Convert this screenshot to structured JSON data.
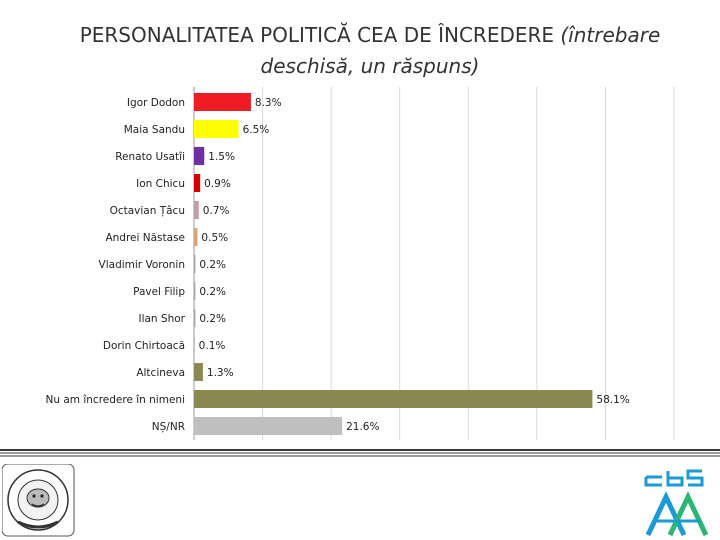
{
  "title": {
    "main": "PERSONALITATEA POLITICĂ CEA DE ÎNCREDERE",
    "italic": "(întrebare deschisă, un răspuns)"
  },
  "chart_data": {
    "type": "bar",
    "orientation": "horizontal",
    "categories": [
      "Igor Dodon",
      "Maia Sandu",
      "Renato Usatîi",
      "Ion Chicu",
      "Octavian Țâcu",
      "Andrei Năstase",
      "Vladimir Voronin",
      "Pavel Filip",
      "Ilan Shor",
      "Dorin Chirtoacă",
      "Altcineva",
      "Nu am încredere în nimeni",
      "NȘ/NR"
    ],
    "values": [
      8.3,
      6.5,
      1.5,
      0.9,
      0.7,
      0.5,
      0.2,
      0.2,
      0.2,
      0.1,
      1.3,
      58.1,
      21.6
    ],
    "value_labels": [
      "8.3%",
      "6.5%",
      "1.5%",
      "0.9%",
      "0.7%",
      "0.5%",
      "0.2%",
      "0.2%",
      "0.2%",
      "0.1%",
      "1.3%",
      "58.1%",
      "21.6%"
    ],
    "colors": [
      "#ee1c25",
      "#ffff00",
      "#7030a0",
      "#d50000",
      "#c0a0a8",
      "#d9a27a",
      "#a6a6a6",
      "#a6a6a6",
      "#a6a6a6",
      "#a6a6a6",
      "#8b8751",
      "#8b8751",
      "#bfbfbf"
    ],
    "xlim": [
      0,
      70
    ],
    "grid": true,
    "legend": "none"
  },
  "logos": {
    "left": {
      "text": "THE WATCH DOG",
      "icon": "watchdog-seal-icon"
    },
    "right": {
      "text": "CBS AXA",
      "icon": "cbs-axa-logo-icon"
    }
  },
  "colors": {
    "rule": "#3a3a3a",
    "cbs_blue": "#1a9bd7"
  }
}
